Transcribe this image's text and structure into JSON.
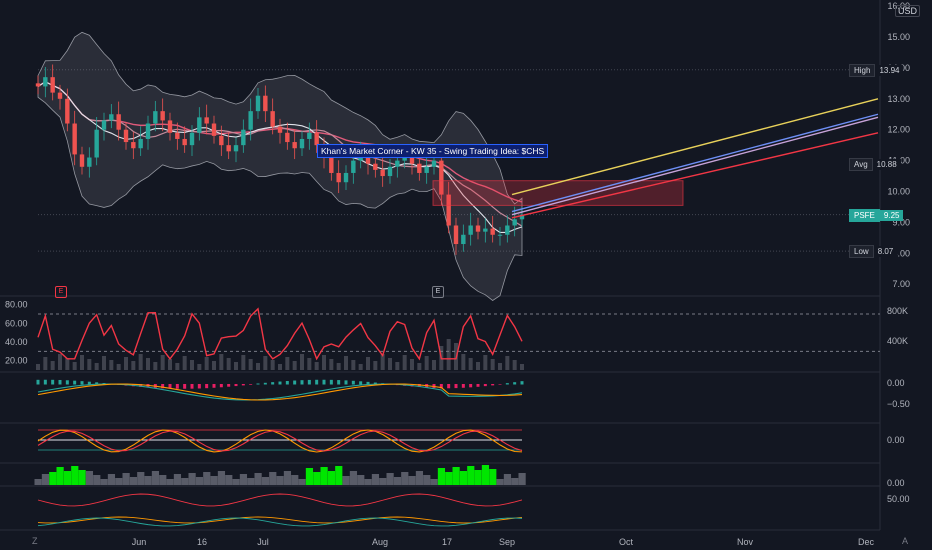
{
  "chart_title": "Khan's Market Corner - KW 35 - Swing Trading Idea: $CHS",
  "currency": "USD",
  "corner_left": "Z",
  "corner_right": "A",
  "earnings_markers": [
    "E",
    "E"
  ],
  "price_labels": [
    {
      "key": "High",
      "value": "13.94",
      "price": 13.94
    },
    {
      "key": "Avg",
      "value": "10.88",
      "price": 10.88
    },
    {
      "key": "PSFE",
      "value": "9.25",
      "price": 9.25
    },
    {
      "key": "Low",
      "value": "8.07",
      "price": 8.07
    }
  ],
  "colors": {
    "background": "#131722",
    "up": "#26a69a",
    "down": "#ef5350",
    "bb": "#9598a1",
    "rsi": "#f23645",
    "target": "#f7525f"
  },
  "chart_data": {
    "type": "candlestick",
    "title": "Khan's Market Corner - KW 35 - Swing Trading Idea: $CHS",
    "symbol": "PSFE",
    "last": 9.25,
    "high": 13.94,
    "average": 10.88,
    "low": 8.07,
    "ylim": [
      6.5,
      16.2
    ],
    "y_ticks": [
      "7.00",
      "8.00",
      "9.00",
      "10.00",
      "11.00",
      "12.00",
      "13.00",
      "14.00",
      "15.00",
      "16.00"
    ],
    "x_ticks": [
      "Jun",
      "16",
      "Jul",
      "Aug",
      "17",
      "Sep",
      "Oct",
      "Nov",
      "Dec"
    ],
    "close_approx": [
      13.4,
      13.7,
      13.2,
      13.0,
      12.2,
      11.2,
      10.8,
      11.1,
      12.0,
      12.3,
      12.5,
      12.0,
      11.6,
      11.4,
      11.7,
      12.2,
      12.6,
      12.3,
      11.9,
      11.7,
      11.5,
      11.9,
      12.4,
      12.2,
      11.8,
      11.5,
      11.3,
      11.5,
      12.0,
      12.6,
      13.1,
      12.6,
      12.1,
      11.9,
      11.6,
      11.4,
      11.7,
      11.9,
      11.5,
      11.1,
      10.6,
      10.3,
      10.6,
      11.0,
      11.2,
      10.9,
      10.7,
      10.5,
      10.8,
      11.0,
      11.1,
      10.9,
      10.6,
      10.8,
      11.0,
      9.9,
      8.9,
      8.3,
      8.6,
      8.9,
      8.7,
      8.8,
      8.6,
      8.6,
      8.9,
      9.1,
      9.25
    ],
    "target_zone": {
      "from": 9.55,
      "to": 10.35
    },
    "projection_lines": [
      {
        "name": "yellow",
        "from": 9.9,
        "to": 13.0
      },
      {
        "name": "blue",
        "from": 9.35,
        "to": 12.5
      },
      {
        "name": "violet",
        "from": 9.25,
        "to": 12.4
      },
      {
        "name": "red",
        "from": 9.15,
        "to": 11.9
      }
    ],
    "volume_ticks": [
      "800K",
      "400K"
    ],
    "rsi_ticks": [
      "80.00",
      "60.00",
      "40.00",
      "20.00"
    ],
    "macd_ticks": [
      "0.00",
      "−0.50"
    ],
    "osc_ticks": [
      "0.00"
    ],
    "sq_ticks": [
      "0.00"
    ],
    "dmi_ticks": [
      "50.00"
    ]
  }
}
